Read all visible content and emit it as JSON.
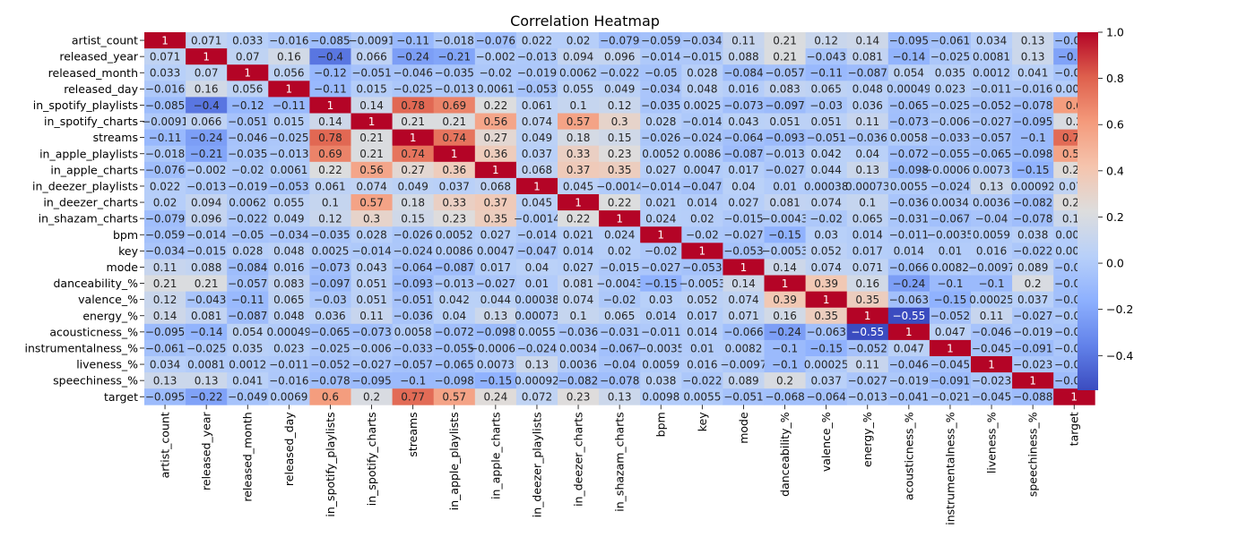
{
  "chart_data": {
    "type": "heatmap",
    "title": "Correlation Heatmap",
    "labels": [
      "artist_count",
      "released_year",
      "released_month",
      "released_day",
      "in_spotify_playlists",
      "in_spotify_charts",
      "streams",
      "in_apple_playlists",
      "in_apple_charts",
      "in_deezer_playlists",
      "in_deezer_charts",
      "in_shazam_charts",
      "bpm",
      "key",
      "mode",
      "danceability_%",
      "valence_%",
      "energy_%",
      "acousticness_%",
      "instrumentalness_%",
      "liveness_%",
      "speechiness_%",
      "target"
    ],
    "matrix": [
      [
        1,
        0.071,
        0.033,
        -0.016,
        -0.085,
        -0.0091,
        -0.11,
        -0.018,
        -0.076,
        0.022,
        0.02,
        -0.079,
        -0.059,
        -0.034,
        0.11,
        0.21,
        0.12,
        0.14,
        -0.095,
        -0.061,
        0.034,
        0.13,
        -0.095
      ],
      [
        0.071,
        1,
        0.07,
        0.16,
        -0.4,
        0.066,
        -0.24,
        -0.21,
        -0.002,
        -0.013,
        0.094,
        0.096,
        -0.014,
        -0.015,
        0.088,
        0.21,
        -0.043,
        0.081,
        -0.14,
        -0.025,
        0.0081,
        0.13,
        -0.22
      ],
      [
        0.033,
        0.07,
        1,
        0.056,
        -0.12,
        -0.051,
        -0.046,
        -0.035,
        -0.02,
        -0.019,
        0.0062,
        -0.022,
        -0.05,
        0.028,
        -0.084,
        -0.057,
        -0.11,
        -0.087,
        0.054,
        0.035,
        0.0012,
        0.041,
        -0.049
      ],
      [
        -0.016,
        0.16,
        0.056,
        1,
        -0.11,
        0.015,
        -0.025,
        -0.013,
        0.0061,
        -0.053,
        0.055,
        0.049,
        -0.034,
        0.048,
        0.016,
        0.083,
        0.065,
        0.048,
        0.00049,
        0.023,
        -0.011,
        -0.016,
        0.0069
      ],
      [
        -0.085,
        -0.4,
        -0.12,
        -0.11,
        1,
        0.14,
        0.78,
        0.69,
        0.22,
        0.061,
        0.1,
        0.12,
        -0.035,
        0.0025,
        -0.073,
        -0.097,
        -0.03,
        0.036,
        -0.065,
        -0.025,
        -0.052,
        -0.078,
        0.6
      ],
      [
        -0.0091,
        0.066,
        -0.051,
        0.015,
        0.14,
        1,
        0.21,
        0.21,
        0.56,
        0.074,
        0.57,
        0.3,
        0.028,
        -0.014,
        0.043,
        0.051,
        0.051,
        0.11,
        -0.073,
        -0.006,
        -0.027,
        -0.095,
        0.2
      ],
      [
        -0.11,
        -0.24,
        -0.046,
        -0.025,
        0.78,
        0.21,
        1,
        0.74,
        0.27,
        0.049,
        0.18,
        0.15,
        -0.026,
        -0.024,
        -0.064,
        -0.093,
        -0.051,
        -0.036,
        0.0058,
        -0.033,
        -0.057,
        -0.1,
        0.77
      ],
      [
        -0.018,
        -0.21,
        -0.035,
        -0.013,
        0.69,
        0.21,
        0.74,
        1,
        0.36,
        0.037,
        0.33,
        0.23,
        0.0052,
        0.0086,
        -0.087,
        -0.013,
        0.042,
        0.04,
        -0.072,
        -0.055,
        -0.065,
        -0.098,
        0.57
      ],
      [
        -0.076,
        -0.002,
        -0.02,
        0.0061,
        0.22,
        0.56,
        0.27,
        0.36,
        1,
        0.068,
        0.37,
        0.35,
        0.027,
        0.0047,
        0.017,
        -0.027,
        0.044,
        0.13,
        -0.098,
        -0.00062,
        0.0073,
        -0.15,
        0.24
      ],
      [
        0.022,
        -0.013,
        -0.019,
        -0.053,
        0.061,
        0.074,
        0.049,
        0.037,
        0.068,
        1,
        0.045,
        -0.0014,
        -0.014,
        -0.047,
        0.04,
        0.01,
        0.00038,
        0.00073,
        0.0055,
        -0.024,
        0.13,
        0.00092,
        0.072
      ],
      [
        0.02,
        0.094,
        0.0062,
        0.055,
        0.1,
        0.57,
        0.18,
        0.33,
        0.37,
        0.045,
        1,
        0.22,
        0.021,
        0.014,
        0.027,
        0.081,
        0.074,
        0.1,
        -0.036,
        0.0034,
        0.0036,
        -0.082,
        0.23
      ],
      [
        -0.079,
        0.096,
        -0.022,
        0.049,
        0.12,
        0.3,
        0.15,
        0.23,
        0.35,
        -0.0014,
        0.22,
        1,
        0.024,
        0.02,
        -0.015,
        -0.0043,
        -0.02,
        0.065,
        -0.031,
        -0.067,
        -0.04,
        -0.078,
        0.13
      ],
      [
        -0.059,
        -0.014,
        -0.05,
        -0.034,
        -0.035,
        0.028,
        -0.026,
        0.0052,
        0.027,
        -0.014,
        0.021,
        0.024,
        1,
        -0.02,
        -0.027,
        -0.15,
        0.03,
        0.014,
        -0.011,
        -0.0035,
        0.0059,
        0.038,
        0.0098
      ],
      [
        -0.034,
        -0.015,
        0.028,
        0.048,
        0.0025,
        -0.014,
        -0.024,
        0.0086,
        0.0047,
        -0.047,
        0.014,
        0.02,
        -0.02,
        1,
        -0.053,
        -0.0053,
        0.052,
        0.017,
        0.014,
        0.01,
        0.016,
        -0.022,
        0.0055
      ],
      [
        0.11,
        0.088,
        -0.084,
        0.016,
        -0.073,
        0.043,
        -0.064,
        -0.087,
        0.017,
        0.04,
        0.027,
        -0.015,
        -0.027,
        -0.053,
        1,
        0.14,
        0.074,
        0.071,
        -0.066,
        0.0082,
        -0.0097,
        0.089,
        -0.051
      ],
      [
        0.21,
        0.21,
        -0.057,
        0.083,
        -0.097,
        0.051,
        -0.093,
        -0.013,
        -0.027,
        0.01,
        0.081,
        -0.0043,
        -0.15,
        -0.0053,
        0.14,
        1,
        0.39,
        0.16,
        -0.24,
        -0.1,
        -0.1,
        0.2,
        -0.068
      ],
      [
        0.12,
        -0.043,
        -0.11,
        0.065,
        -0.03,
        0.051,
        -0.051,
        0.042,
        0.044,
        0.00038,
        0.074,
        -0.02,
        0.03,
        0.052,
        0.074,
        0.39,
        1,
        0.35,
        -0.063,
        -0.15,
        0.00025,
        0.037,
        -0.064
      ],
      [
        0.14,
        0.081,
        -0.087,
        0.048,
        0.036,
        0.11,
        -0.036,
        0.04,
        0.13,
        0.00073,
        0.1,
        0.065,
        0.014,
        0.017,
        0.071,
        0.16,
        0.35,
        1,
        -0.55,
        -0.052,
        0.11,
        -0.027,
        -0.013
      ],
      [
        -0.095,
        -0.14,
        0.054,
        0.00049,
        -0.065,
        -0.073,
        0.0058,
        -0.072,
        -0.098,
        0.0055,
        -0.036,
        -0.031,
        -0.011,
        0.014,
        -0.066,
        -0.24,
        -0.063,
        -0.55,
        1,
        0.047,
        -0.046,
        -0.019,
        -0.041
      ],
      [
        -0.061,
        -0.025,
        0.035,
        0.023,
        -0.025,
        -0.006,
        -0.033,
        -0.055,
        -0.00062,
        -0.024,
        0.0034,
        -0.067,
        -0.0035,
        0.01,
        0.0082,
        -0.1,
        -0.15,
        -0.052,
        0.047,
        1,
        -0.045,
        -0.091,
        -0.021
      ],
      [
        0.034,
        0.0081,
        0.0012,
        -0.011,
        -0.052,
        -0.027,
        -0.057,
        -0.065,
        0.0073,
        0.13,
        0.0036,
        -0.04,
        0.0059,
        0.016,
        -0.0097,
        -0.1,
        0.00025,
        0.11,
        -0.046,
        -0.045,
        1,
        -0.023,
        -0.045
      ],
      [
        0.13,
        0.13,
        0.041,
        -0.016,
        -0.078,
        -0.095,
        -0.1,
        -0.098,
        -0.15,
        0.00092,
        -0.082,
        -0.078,
        0.038,
        -0.022,
        0.089,
        0.2,
        0.037,
        -0.027,
        -0.019,
        -0.091,
        -0.023,
        1,
        -0.088
      ],
      [
        -0.095,
        -0.22,
        -0.049,
        0.0069,
        0.6,
        0.2,
        0.77,
        0.57,
        0.24,
        0.072,
        0.23,
        0.13,
        0.0098,
        0.0055,
        -0.051,
        -0.068,
        -0.064,
        -0.013,
        -0.041,
        -0.021,
        -0.045,
        -0.088,
        1
      ]
    ],
    "colormap": "coolwarm",
    "vmin": -0.55,
    "vmax": 1.0,
    "colorbar_ticks": [
      1.0,
      0.8,
      0.6,
      0.4,
      0.2,
      0.0,
      -0.2,
      -0.4
    ],
    "colorbar_tick_labels": [
      "1.0",
      "0.8",
      "0.6",
      "0.4",
      "0.2",
      "0.0",
      "−0.2",
      "−0.4"
    ],
    "annotations": true
  }
}
